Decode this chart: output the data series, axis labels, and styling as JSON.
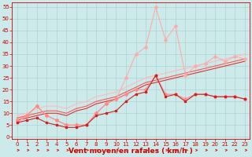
{
  "xlabel": "Vent moyen/en rafales ( km/h )",
  "background_color": "#cceaea",
  "grid_color": "#aacccc",
  "x_ticks": [
    0,
    1,
    2,
    3,
    4,
    5,
    6,
    7,
    8,
    9,
    10,
    11,
    12,
    13,
    14,
    15,
    16,
    17,
    18,
    19,
    20,
    21,
    22,
    23
  ],
  "y_ticks": [
    0,
    5,
    10,
    15,
    20,
    25,
    30,
    35,
    40,
    45,
    50,
    55
  ],
  "ylim": [
    -1,
    57
  ],
  "xlim": [
    -0.5,
    23.5
  ],
  "series": [
    {
      "color": "#ffaaaa",
      "lw": 0.8,
      "marker": "D",
      "ms": 2.0,
      "data_x": [
        0,
        1,
        2,
        3,
        4,
        5,
        6,
        7,
        8,
        9,
        10,
        11,
        12,
        13,
        14,
        15,
        16,
        17,
        18,
        19,
        20,
        21,
        22,
        23
      ],
      "data_y": [
        6,
        9,
        13,
        9,
        7,
        5,
        5,
        5,
        10,
        14,
        16,
        25,
        35,
        38,
        55,
        41,
        47,
        26,
        30,
        31,
        34,
        32,
        34,
        33
      ]
    },
    {
      "color": "#ff8888",
      "lw": 0.8,
      "marker": "D",
      "ms": 2.0,
      "data_x": [
        0,
        1,
        2,
        3,
        4,
        5,
        6,
        7,
        8,
        9,
        10,
        11,
        12,
        13,
        14,
        15,
        16,
        17,
        18,
        19,
        20,
        21,
        22,
        23
      ],
      "data_y": [
        7,
        9,
        13,
        9,
        7,
        5,
        5,
        5,
        10,
        14,
        16,
        18,
        20,
        20,
        26,
        18,
        18,
        16,
        18,
        18,
        17,
        17,
        17,
        16
      ]
    },
    {
      "color": "#cc2222",
      "lw": 0.8,
      "marker": "s",
      "ms": 2.0,
      "data_x": [
        0,
        1,
        2,
        3,
        4,
        5,
        6,
        7,
        8,
        9,
        10,
        11,
        12,
        13,
        14,
        15,
        16,
        17,
        18,
        19,
        20,
        21,
        22,
        23
      ],
      "data_y": [
        6,
        7,
        8,
        6,
        5,
        4,
        4,
        5,
        9,
        10,
        11,
        15,
        18,
        19,
        26,
        17,
        18,
        15,
        18,
        18,
        17,
        17,
        17,
        16
      ]
    },
    {
      "color": "#ff5555",
      "lw": 0.8,
      "marker": null,
      "data_x": [
        0,
        1,
        2,
        3,
        4,
        5,
        6,
        7,
        8,
        9,
        10,
        11,
        12,
        13,
        14,
        15,
        16,
        17,
        18,
        19,
        20,
        21,
        22,
        23
      ],
      "data_y": [
        8,
        9,
        10,
        11,
        11,
        10,
        12,
        13,
        15,
        16,
        17,
        19,
        21,
        23,
        24,
        25,
        26,
        27,
        28,
        29,
        30,
        31,
        32,
        33
      ]
    },
    {
      "color": "#ffbbbb",
      "lw": 0.8,
      "marker": null,
      "data_x": [
        0,
        1,
        2,
        3,
        4,
        5,
        6,
        7,
        8,
        9,
        10,
        11,
        12,
        13,
        14,
        15,
        16,
        17,
        18,
        19,
        20,
        21,
        22,
        23
      ],
      "data_y": [
        9,
        10,
        12,
        13,
        13,
        12,
        14,
        15,
        17,
        18,
        19,
        21,
        23,
        25,
        26,
        27,
        28,
        29,
        30,
        31,
        32,
        33,
        34,
        35
      ]
    },
    {
      "color": "#dd3333",
      "lw": 0.8,
      "marker": null,
      "data_x": [
        0,
        1,
        2,
        3,
        4,
        5,
        6,
        7,
        8,
        9,
        10,
        11,
        12,
        13,
        14,
        15,
        16,
        17,
        18,
        19,
        20,
        21,
        22,
        23
      ],
      "data_y": [
        7,
        8,
        9,
        10,
        10,
        9,
        11,
        12,
        14,
        15,
        16,
        18,
        20,
        22,
        23,
        24,
        25,
        26,
        27,
        28,
        29,
        30,
        31,
        32
      ]
    }
  ],
  "arrow_color": "#dd2222",
  "tick_color": "#cc0000",
  "spine_color": "#cc0000",
  "xlabel_color": "#cc0000",
  "xlabel_fontsize": 6.5,
  "tick_fontsize": 5.0
}
